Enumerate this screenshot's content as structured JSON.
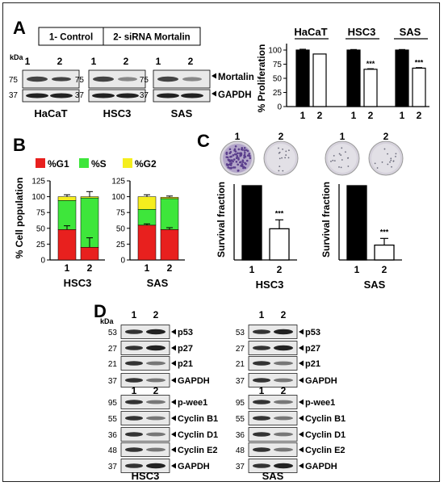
{
  "panels": {
    "A": {
      "letter": "A",
      "legend": [
        "1- Control",
        "2- siRNA Mortalin"
      ],
      "kda": "kDa",
      "lanes": [
        "1",
        "2"
      ],
      "blots": [
        {
          "cell_line": "HaCaT",
          "markers": [
            "75",
            "37"
          ]
        },
        {
          "cell_line": "HSC3",
          "markers": [
            "75",
            "37"
          ]
        },
        {
          "cell_line": "SAS",
          "markers": [
            "75",
            "37"
          ]
        }
      ],
      "proteins": [
        "Mortalin",
        "GAPDH"
      ]
    },
    "B": {
      "letter": "B"
    },
    "C": {
      "letter": "C"
    },
    "D": {
      "letter": "D",
      "kda": "kDa",
      "lanes": [
        "1",
        "2"
      ],
      "groups": [
        {
          "cell_line": "HSC3",
          "top": [
            {
              "kda": "53",
              "protein": "p53"
            },
            {
              "kda": "27",
              "protein": "p27"
            },
            {
              "kda": "21",
              "protein": "p21"
            },
            {
              "kda": "37",
              "protein": "GAPDH"
            }
          ],
          "bottom": [
            {
              "kda": "95",
              "protein": "p-wee1"
            },
            {
              "kda": "55",
              "protein": "Cyclin B1"
            },
            {
              "kda": "36",
              "protein": "Cyclin D1"
            },
            {
              "kda": "48",
              "protein": "Cyclin E2"
            },
            {
              "kda": "37",
              "protein": "GAPDH"
            }
          ]
        },
        {
          "cell_line": "SAS",
          "top": [
            {
              "kda": "53",
              "protein": "p53"
            },
            {
              "kda": "27",
              "protein": "p27"
            },
            {
              "kda": "21",
              "protein": "p21"
            },
            {
              "kda": "37",
              "protein": "GAPDH"
            }
          ],
          "bottom": [
            {
              "kda": "95",
              "protein": "p-wee1"
            },
            {
              "kda": "55",
              "protein": "Cyclin B1"
            },
            {
              "kda": "36",
              "protein": "Cyclin D1"
            },
            {
              "kda": "48",
              "protein": "Cyclin E2"
            },
            {
              "kda": "37",
              "protein": "GAPDH"
            }
          ]
        }
      ]
    }
  },
  "colors": {
    "g1": "#e8201e",
    "s": "#3ee63b",
    "g2": "#f5ee1e",
    "bar_control": "#000000",
    "bar_sirna": "#ffffff",
    "blot_bg": "#e9e9e9",
    "band": "#444444"
  },
  "chart_data": [
    {
      "id": "A_proliferation",
      "type": "bar",
      "ylabel": "% Proliferation",
      "ylim": [
        0,
        100
      ],
      "yticks": [
        0,
        25,
        50,
        75,
        100
      ],
      "groups": [
        {
          "name": "HaCaT",
          "categories": [
            "1",
            "2"
          ],
          "values": [
            100,
            93
          ],
          "errors": [
            1.5,
            0
          ],
          "sig": [
            "",
            ""
          ]
        },
        {
          "name": "HSC3",
          "categories": [
            "1",
            "2"
          ],
          "values": [
            100,
            66
          ],
          "errors": [
            1,
            1
          ],
          "sig": [
            "",
            "***"
          ]
        },
        {
          "name": "SAS",
          "categories": [
            "1",
            "2"
          ],
          "values": [
            100,
            68
          ],
          "errors": [
            1,
            1
          ],
          "sig": [
            "",
            "***"
          ]
        }
      ]
    },
    {
      "id": "B_cellcycle",
      "type": "bar",
      "stacked": true,
      "ylabel": "% Cell population",
      "ylim": [
        0,
        125
      ],
      "yticks": [
        0,
        25,
        50,
        75,
        100,
        125
      ],
      "legend": [
        "%G1",
        "%S",
        "%G2"
      ],
      "groups": [
        {
          "name": "HSC3",
          "categories": [
            "1",
            "2"
          ],
          "g1": [
            48,
            20
          ],
          "s": [
            46,
            78
          ],
          "g2": [
            6,
            2
          ],
          "err_g1": [
            6,
            15
          ],
          "err_top": [
            3,
            8
          ]
        },
        {
          "name": "SAS",
          "categories": [
            "1",
            "2"
          ],
          "g1": [
            55,
            48
          ],
          "s": [
            25,
            49
          ],
          "g2": [
            20,
            2
          ],
          "err_g1": [
            2,
            3
          ],
          "err_top": [
            3,
            2
          ]
        }
      ]
    },
    {
      "id": "C_survival",
      "type": "bar",
      "ylabel": "Survival fraction",
      "dish_labels": [
        "1",
        "2"
      ],
      "groups": [
        {
          "name": "HSC3",
          "categories": [
            "1",
            "2"
          ],
          "values": [
            1.0,
            0.42
          ],
          "errors": [
            0,
            0.12
          ],
          "sig": [
            "",
            "***"
          ]
        },
        {
          "name": "SAS",
          "categories": [
            "1",
            "2"
          ],
          "values": [
            1.0,
            0.2
          ],
          "errors": [
            0,
            0.09
          ],
          "sig": [
            "",
            "***"
          ]
        }
      ]
    }
  ]
}
